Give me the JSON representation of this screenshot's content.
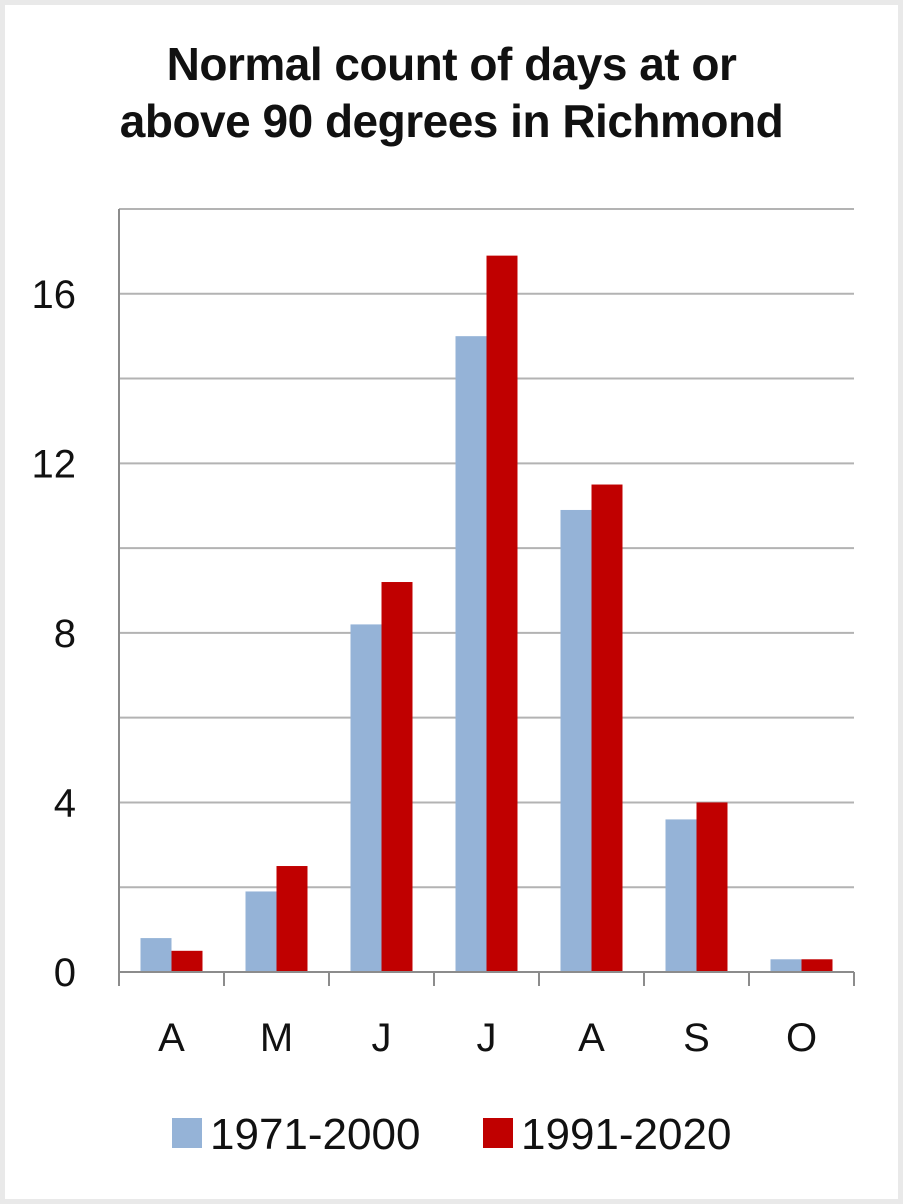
{
  "chart_data": {
    "type": "bar",
    "title_lines": [
      "Normal count of days at or",
      "above 90 degrees in Richmond"
    ],
    "categories": [
      "A",
      "M",
      "J",
      "J",
      "A",
      "S",
      "O"
    ],
    "series": [
      {
        "name": "1971-2000",
        "color": "#95b3d7",
        "values": [
          0.8,
          1.9,
          8.2,
          15.0,
          10.9,
          3.6,
          0.3
        ]
      },
      {
        "name": "1991-2020",
        "color": "#c00000",
        "values": [
          0.5,
          2.5,
          9.2,
          16.9,
          11.5,
          4.0,
          0.3
        ]
      }
    ],
    "ylim": [
      0,
      18
    ],
    "yticks": [
      0,
      4,
      8,
      12,
      16
    ],
    "minor_gridlines": [
      2,
      6,
      10,
      14,
      18
    ],
    "grid": true,
    "legend_position": "bottom",
    "xlabel": "",
    "ylabel": ""
  }
}
